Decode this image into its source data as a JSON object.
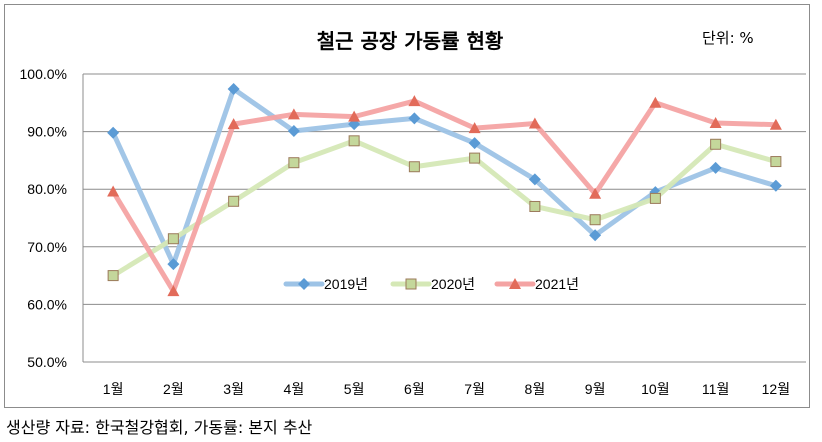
{
  "chart_data": {
    "type": "line",
    "title": "철근 공장 가동률 현황",
    "unit_label": "단위: %",
    "categories": [
      "1월",
      "2월",
      "3월",
      "4월",
      "5월",
      "6월",
      "7월",
      "8월",
      "9월",
      "10월",
      "11월",
      "12월"
    ],
    "ylim": [
      50,
      100
    ],
    "yticks": [
      50,
      60,
      70,
      80,
      90,
      100
    ],
    "ytick_labels": [
      "50.0%",
      "60.0%",
      "70.0%",
      "80.0%",
      "90.0%",
      "100.0%"
    ],
    "grid": true,
    "legend_position": "inside-lower-center",
    "series": [
      {
        "name": "2019년",
        "color": "#9dc3e6",
        "marker_color": "#5b9bd5",
        "marker": "diamond",
        "values": [
          89.8,
          67.0,
          97.4,
          90.1,
          91.3,
          92.3,
          88.0,
          81.7,
          72.0,
          79.5,
          83.7,
          80.6
        ]
      },
      {
        "name": "2020년",
        "color": "#d5e8b6",
        "marker_color": "#c4d79b",
        "marker": "square",
        "values": [
          65.0,
          71.4,
          77.9,
          84.6,
          88.4,
          83.9,
          85.4,
          77.0,
          74.7,
          78.4,
          87.8,
          84.8
        ]
      },
      {
        "name": "2021년",
        "color": "#f4a3a3",
        "marker_color": "#e26b5a",
        "marker": "triangle",
        "values": [
          79.6,
          62.3,
          91.3,
          93.0,
          92.6,
          95.3,
          90.6,
          91.4,
          79.2,
          95.0,
          91.5,
          91.2
        ]
      }
    ]
  },
  "source_note": "생산량 자료: 한국철강협회, 가동률: 본지 추산"
}
